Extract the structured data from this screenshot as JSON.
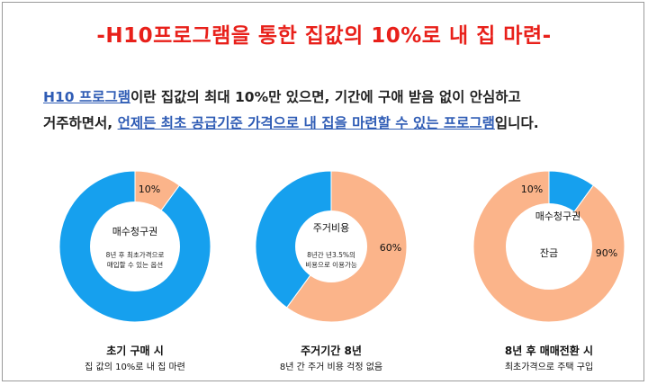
{
  "title": "-H10프로그램을 통한 집값의 10%로 내 집 마련-",
  "intro": {
    "link_1": "H10 프로그램",
    "text_1": "이란 집값의 최대 10%만 있으면, 기간에 구애 받음 없이 안심하고",
    "text_2": "거주하면서, ",
    "link_2": "언제든 최초 공급기준 가격으로 내 집을 마련할 수 있는 프로그램",
    "text_3": "입니다."
  },
  "colors": {
    "blue": "#16a0ee",
    "orange": "#fbb48a",
    "title_red": "#e8201a",
    "link_blue": "#2f5cb5"
  },
  "chart_data": [
    {
      "type": "pie",
      "slices": [
        {
          "label": "10%",
          "value": 10,
          "color": "#fbb48a"
        },
        {
          "label": "",
          "value": 90,
          "color": "#16a0ee"
        }
      ],
      "center_title": "매수청구권",
      "center_note_1": "8년 후 최초가격으로",
      "center_note_2": "매입할 수 있는 옵션",
      "caption_main": "초기 구매 시",
      "caption_sub": "집 값의 10%로 내 집 마련"
    },
    {
      "type": "pie",
      "slices": [
        {
          "label": "60%",
          "value": 60,
          "color": "#fbb48a"
        },
        {
          "label": "",
          "value": 40,
          "color": "#16a0ee"
        }
      ],
      "center_title": "주거비용",
      "center_note_1": "8년간 년3.5%의",
      "center_note_2": "비용으로 이용가능",
      "caption_main": "주거기간 8년",
      "caption_sub": "8년 간 주거 비용 걱정 없음"
    },
    {
      "type": "pie",
      "slices": [
        {
          "label": "10%",
          "value": 10,
          "color": "#16a0ee"
        },
        {
          "label": "90%",
          "value": 90,
          "color": "#fbb48a"
        }
      ],
      "center_title": "매수청구권",
      "center_note_1": "",
      "center_note_2": "",
      "inner_label": "잔금",
      "caption_main": "8년 후 매매전환 시",
      "caption_sub": "최초가격으로 주택 구입"
    }
  ]
}
